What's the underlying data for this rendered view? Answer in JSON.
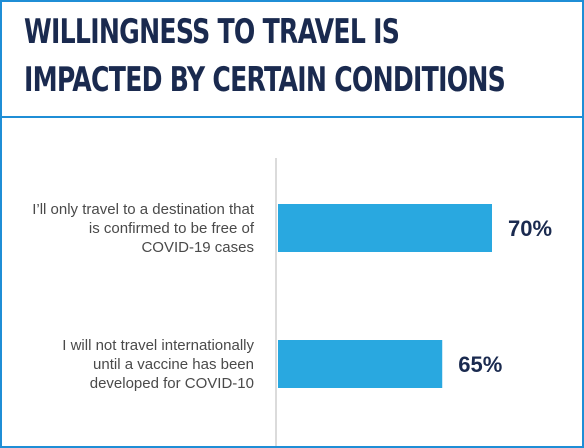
{
  "title_lines": [
    "WILLINGNESS TO TRAVEL IS",
    "IMPACTED BY CERTAIN CONDITIONS"
  ],
  "colors": {
    "bar": "#29a8e0",
    "border": "#1f8ed6",
    "title": "#1a2a4f",
    "axis": "#cfcfcf"
  },
  "chart_data": {
    "type": "bar",
    "orientation": "horizontal",
    "categories": [
      "I'll only travel to a destination that is confirmed to be free of COVID-19 cases",
      "I will not travel internationally until a vaccine has been developed for COVID-10"
    ],
    "category_label_lines": [
      [
        "I’ll only travel to a destination that",
        "is confirmed to be free of",
        "COVID-19 cases"
      ],
      [
        "I will not travel internationally",
        "until a vaccine has been",
        "developed for COVID-10"
      ]
    ],
    "values": [
      70,
      65
    ],
    "value_labels": [
      "70%",
      "65%"
    ],
    "value_unit": "%",
    "xlabel": "",
    "ylabel": "",
    "xlim": [
      48.5,
      70
    ],
    "grid": false,
    "legend": "none"
  }
}
